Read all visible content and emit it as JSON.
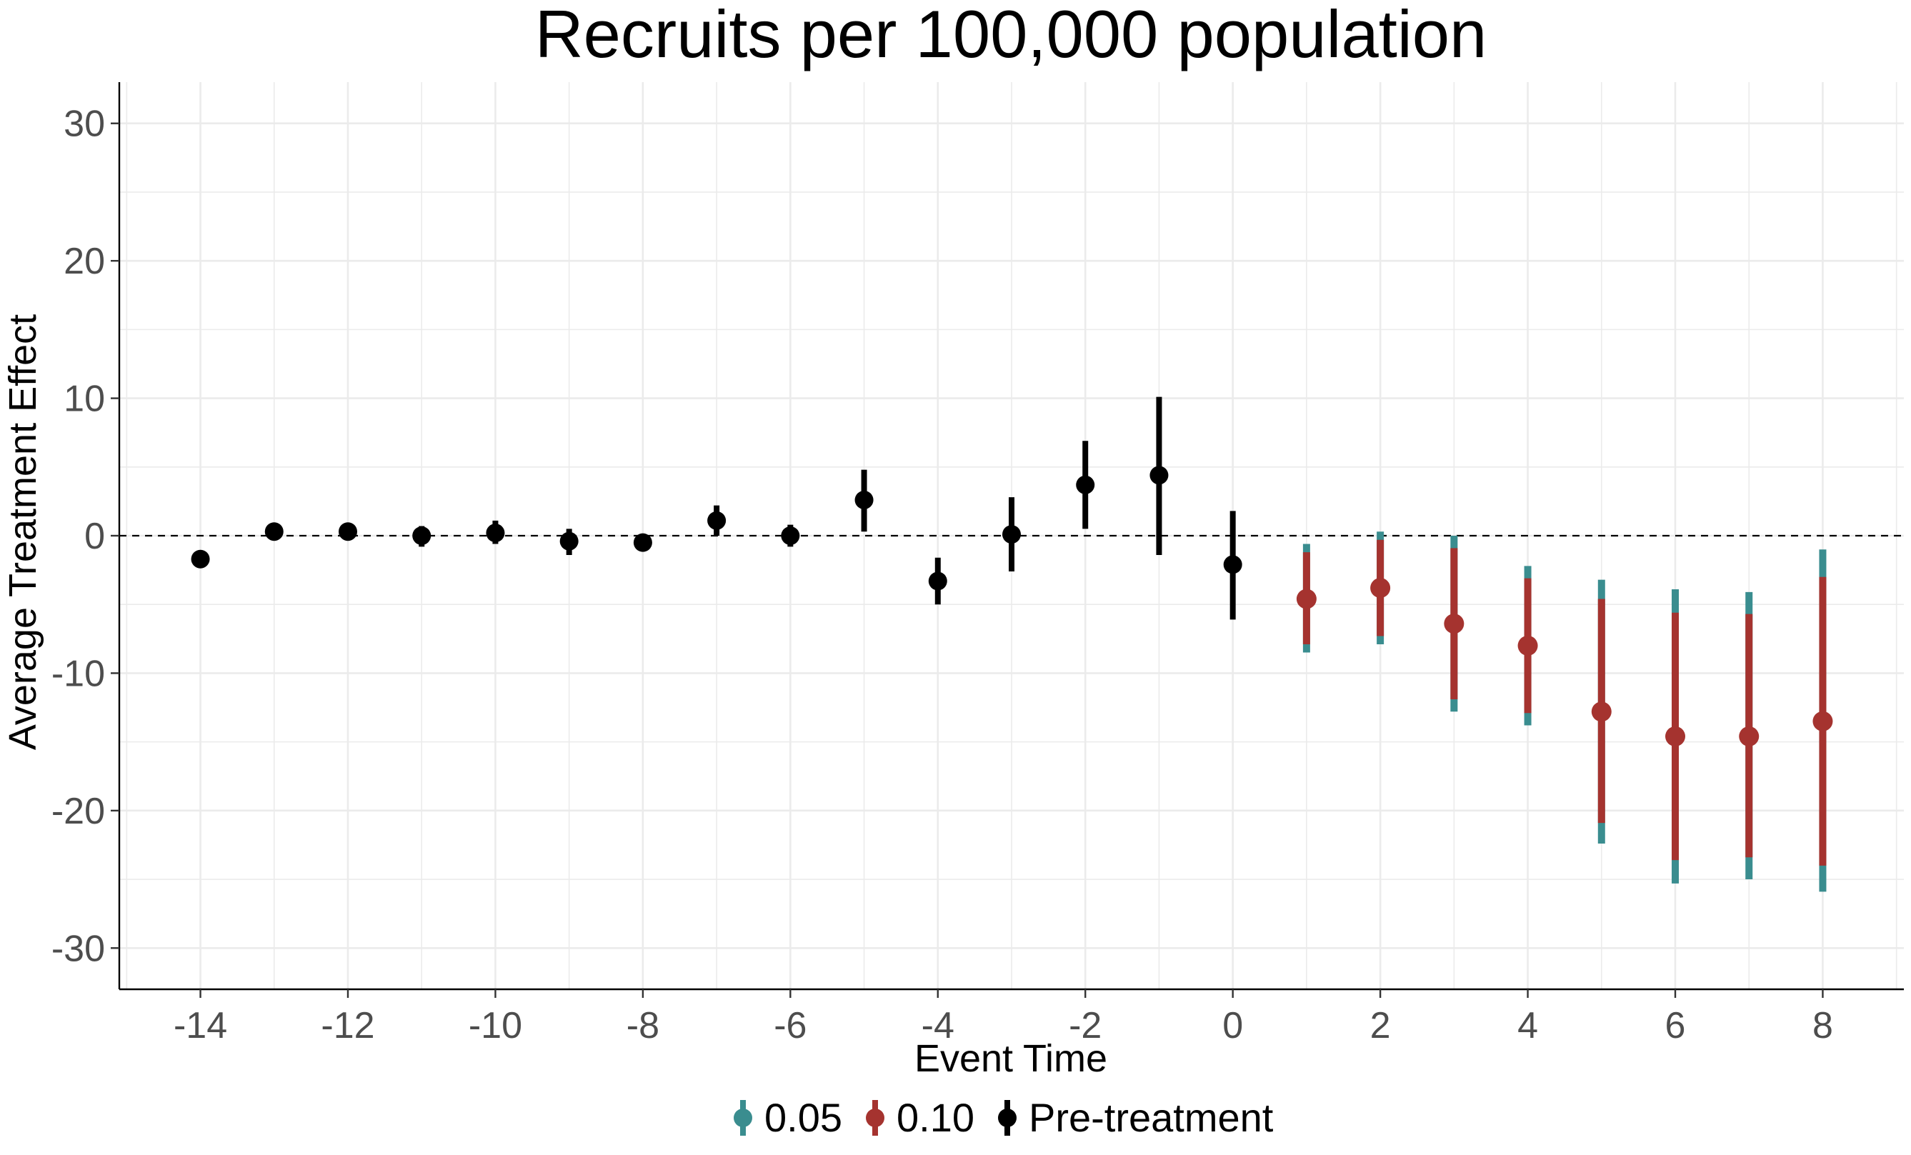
{
  "colors": {
    "ci95": "#3a8d8f",
    "ci90": "#a5332f",
    "pre": "#000000",
    "grid": "#ebebeb",
    "axis": "#000000",
    "tick_text": "#4d4d4d"
  },
  "chart_data": {
    "type": "scatter",
    "subtype": "event-study point estimates with confidence intervals",
    "title": "Recruits per 100,000 population",
    "xlabel": "Event Time",
    "ylabel": "Average Treatment Effect",
    "xlim": [
      -15.1,
      9.1
    ],
    "ylim": [
      -33,
      33
    ],
    "x_ticks": [
      -14,
      -12,
      -10,
      -8,
      -6,
      -4,
      -2,
      0,
      2,
      4,
      6,
      8
    ],
    "x_tick_labels": [
      "-14",
      "-12",
      "-10",
      "-8",
      "-6",
      "-4",
      "-2",
      "0",
      "2",
      "4",
      "6",
      "8"
    ],
    "y_ticks": [
      -30,
      -20,
      -10,
      0,
      10,
      20,
      30
    ],
    "y_tick_labels": [
      "-30",
      "-20",
      "-10",
      "0",
      "10",
      "20",
      "30"
    ],
    "grid": true,
    "reference_line": {
      "y": 0,
      "style": "dashed"
    },
    "legend": {
      "position": "bottom",
      "entries": [
        {
          "label": "0.05",
          "color_key": "ci95"
        },
        {
          "label": "0.10",
          "color_key": "ci90"
        },
        {
          "label": "Pre-treatment",
          "color_key": "pre"
        }
      ]
    },
    "pre_treatment": [
      {
        "x": -14,
        "y": -1.7,
        "lo": -1.7,
        "hi": -1.7
      },
      {
        "x": -13,
        "y": 0.3,
        "lo": 0.3,
        "hi": 0.3
      },
      {
        "x": -12,
        "y": 0.3,
        "lo": 0.3,
        "hi": 0.3
      },
      {
        "x": -11,
        "y": 0.0,
        "lo": -0.8,
        "hi": 0.7
      },
      {
        "x": -10,
        "y": 0.2,
        "lo": -0.6,
        "hi": 1.1
      },
      {
        "x": -9,
        "y": -0.4,
        "lo": -1.4,
        "hi": 0.5
      },
      {
        "x": -8,
        "y": -0.5,
        "lo": -0.5,
        "hi": -0.5
      },
      {
        "x": -7,
        "y": 1.1,
        "lo": 0.0,
        "hi": 2.2
      },
      {
        "x": -6,
        "y": 0.0,
        "lo": -0.8,
        "hi": 0.8
      },
      {
        "x": -5,
        "y": 2.6,
        "lo": 0.3,
        "hi": 4.8
      },
      {
        "x": -4,
        "y": -3.3,
        "lo": -5.0,
        "hi": -1.6
      },
      {
        "x": -3,
        "y": 0.1,
        "lo": -2.6,
        "hi": 2.8
      },
      {
        "x": -2,
        "y": 3.7,
        "lo": 0.5,
        "hi": 6.9
      },
      {
        "x": -1,
        "y": 4.4,
        "lo": -1.4,
        "hi": 10.1
      },
      {
        "x": 0,
        "y": -2.1,
        "lo": -6.1,
        "hi": 1.8
      }
    ],
    "post_treatment": [
      {
        "x": 1,
        "y": -4.6,
        "lo95": -8.5,
        "hi95": -0.6,
        "lo90": -7.9,
        "hi90": -1.2
      },
      {
        "x": 2,
        "y": -3.8,
        "lo95": -7.9,
        "hi95": 0.3,
        "lo90": -7.3,
        "hi90": -0.3
      },
      {
        "x": 3,
        "y": -6.4,
        "lo95": -12.8,
        "hi95": 0.0,
        "lo90": -11.9,
        "hi90": -0.9
      },
      {
        "x": 4,
        "y": -8.0,
        "lo95": -13.8,
        "hi95": -2.2,
        "lo90": -12.9,
        "hi90": -3.1
      },
      {
        "x": 5,
        "y": -12.8,
        "lo95": -22.4,
        "hi95": -3.2,
        "lo90": -20.9,
        "hi90": -4.6
      },
      {
        "x": 6,
        "y": -14.6,
        "lo95": -25.3,
        "hi95": -3.9,
        "lo90": -23.6,
        "hi90": -5.6
      },
      {
        "x": 7,
        "y": -14.6,
        "lo95": -25.0,
        "hi95": -4.1,
        "lo90": -23.4,
        "hi90": -5.7
      },
      {
        "x": 8,
        "y": -13.5,
        "lo95": -25.9,
        "hi95": -1.0,
        "lo90": -24.0,
        "hi90": -3.0
      }
    ]
  }
}
